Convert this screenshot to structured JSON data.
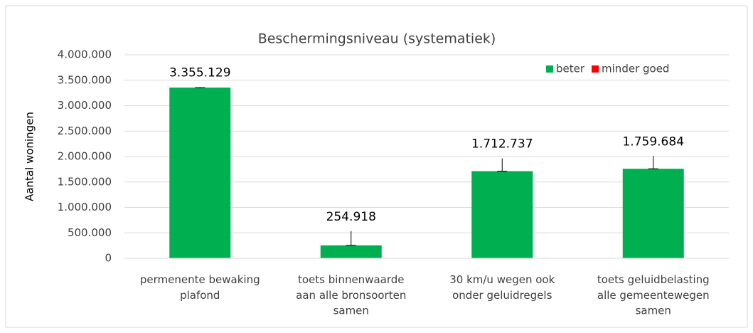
{
  "chart_data": {
    "type": "bar",
    "title": "Beschermingsniveau (systematiek)",
    "y_label": "Aantal woningen",
    "categories": [
      "permenente bewaking\nplafond",
      "toets binnenwaarde\naan alle bronsoorten\nsamen",
      "30 km/u wegen ook\nonder geluidregels",
      "toets geluidbelasting\nalle gemeentewegen\nsamen"
    ],
    "series": [
      {
        "name": "beter",
        "color": "#00b050",
        "values": [
          3355129,
          254918,
          1712737,
          1759684
        ],
        "value_labels": [
          "3.355.129",
          "254.918",
          "1.712.737",
          "1.759.684"
        ],
        "errors": [
          10000,
          280000,
          250000,
          250000
        ]
      },
      {
        "name": "minder goed",
        "color": "#ff0000",
        "values": [
          0,
          0,
          0,
          0
        ]
      }
    ],
    "ylim": [
      0,
      4000000
    ],
    "yticks": [
      {
        "value": 0,
        "label": "0"
      },
      {
        "value": 500000,
        "label": "500.000"
      },
      {
        "value": 1000000,
        "label": "1.000.000"
      },
      {
        "value": 1500000,
        "label": "1.500.000"
      },
      {
        "value": 2000000,
        "label": "2.000.000"
      },
      {
        "value": 2500000,
        "label": "2.500.000"
      },
      {
        "value": 3000000,
        "label": "3.000.000"
      },
      {
        "value": 3500000,
        "label": "3.500.000"
      },
      {
        "value": 4000000,
        "label": "4.000.000"
      }
    ],
    "grid": true,
    "legend": "top-right"
  }
}
